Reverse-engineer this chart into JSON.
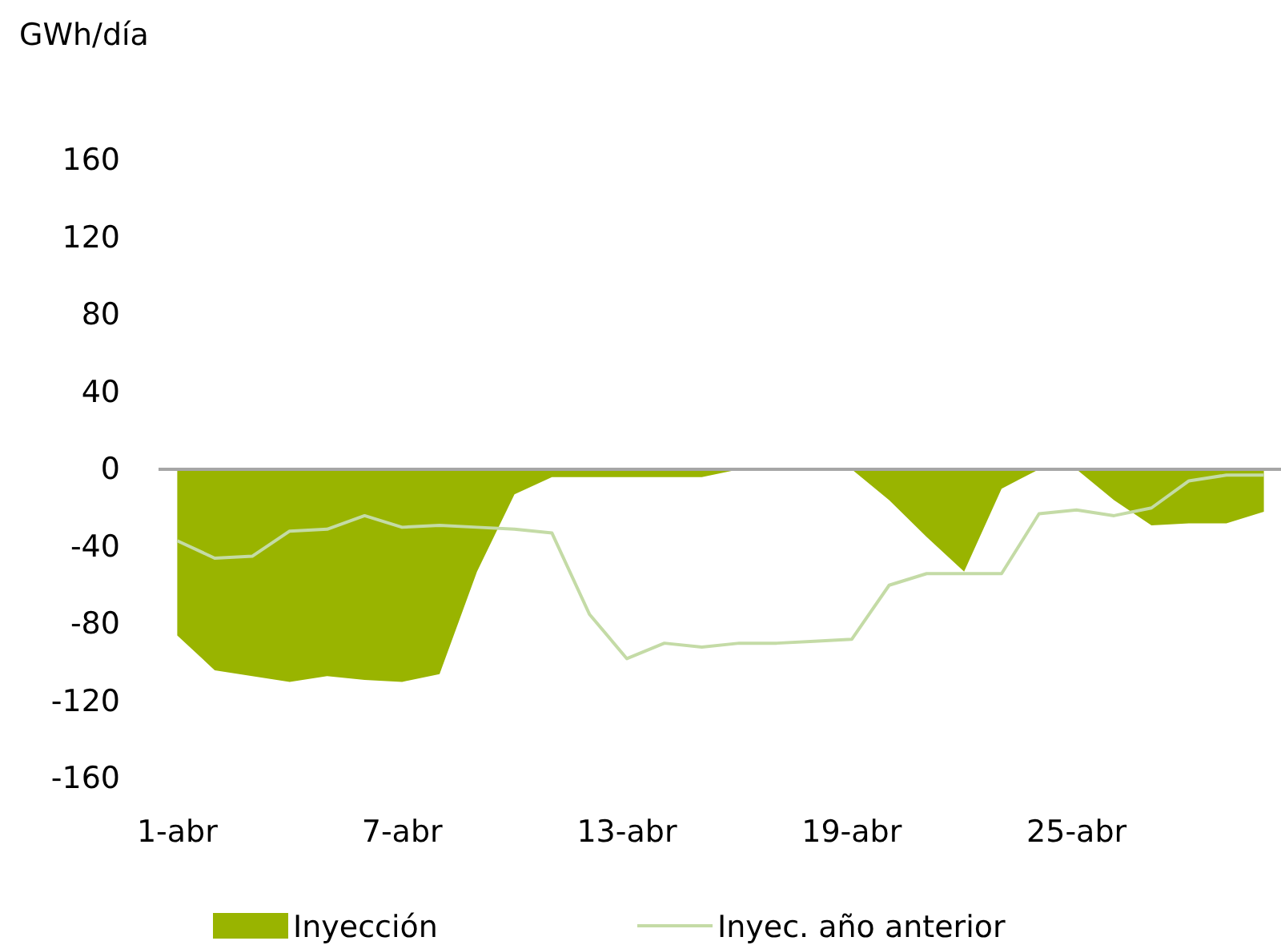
{
  "chart_data": {
    "type": "area",
    "ylabel": "GWh/día",
    "categories": [
      "1-abr",
      null,
      null,
      null,
      null,
      null,
      "7-abr",
      null,
      null,
      null,
      null,
      null,
      "13-abr",
      null,
      null,
      null,
      null,
      null,
      "19-abr",
      null,
      null,
      null,
      null,
      null,
      "25-abr",
      null,
      null,
      null,
      null,
      null
    ],
    "series": [
      {
        "name": "Inyección",
        "color": "#99b400",
        "values": [
          -86,
          -104,
          -107,
          -110,
          -107,
          -109,
          -110,
          -106,
          -53,
          -13,
          -4,
          -4,
          -4,
          -4,
          -4,
          0,
          0,
          0,
          0,
          -16,
          -35,
          -53,
          -10,
          0,
          0,
          -16,
          -29,
          -28,
          -28,
          -22
        ]
      },
      {
        "name": "Inyec. año anterior",
        "type": "line",
        "color": "#c4dba6",
        "values": [
          -37,
          -46,
          -45,
          -32,
          -31,
          -24,
          -30,
          -29,
          -30,
          -31,
          -33,
          -75,
          -98,
          -90,
          -92,
          -90,
          -90,
          -89,
          -88,
          -60,
          -54,
          -54,
          -54,
          -23,
          -21,
          -24,
          -20,
          -6,
          -3,
          -3
        ]
      }
    ],
    "ylim": [
      -160,
      160
    ],
    "yticks": [
      -160,
      -120,
      -80,
      -40,
      0,
      40,
      80,
      120,
      160
    ],
    "legend": "bottom"
  }
}
